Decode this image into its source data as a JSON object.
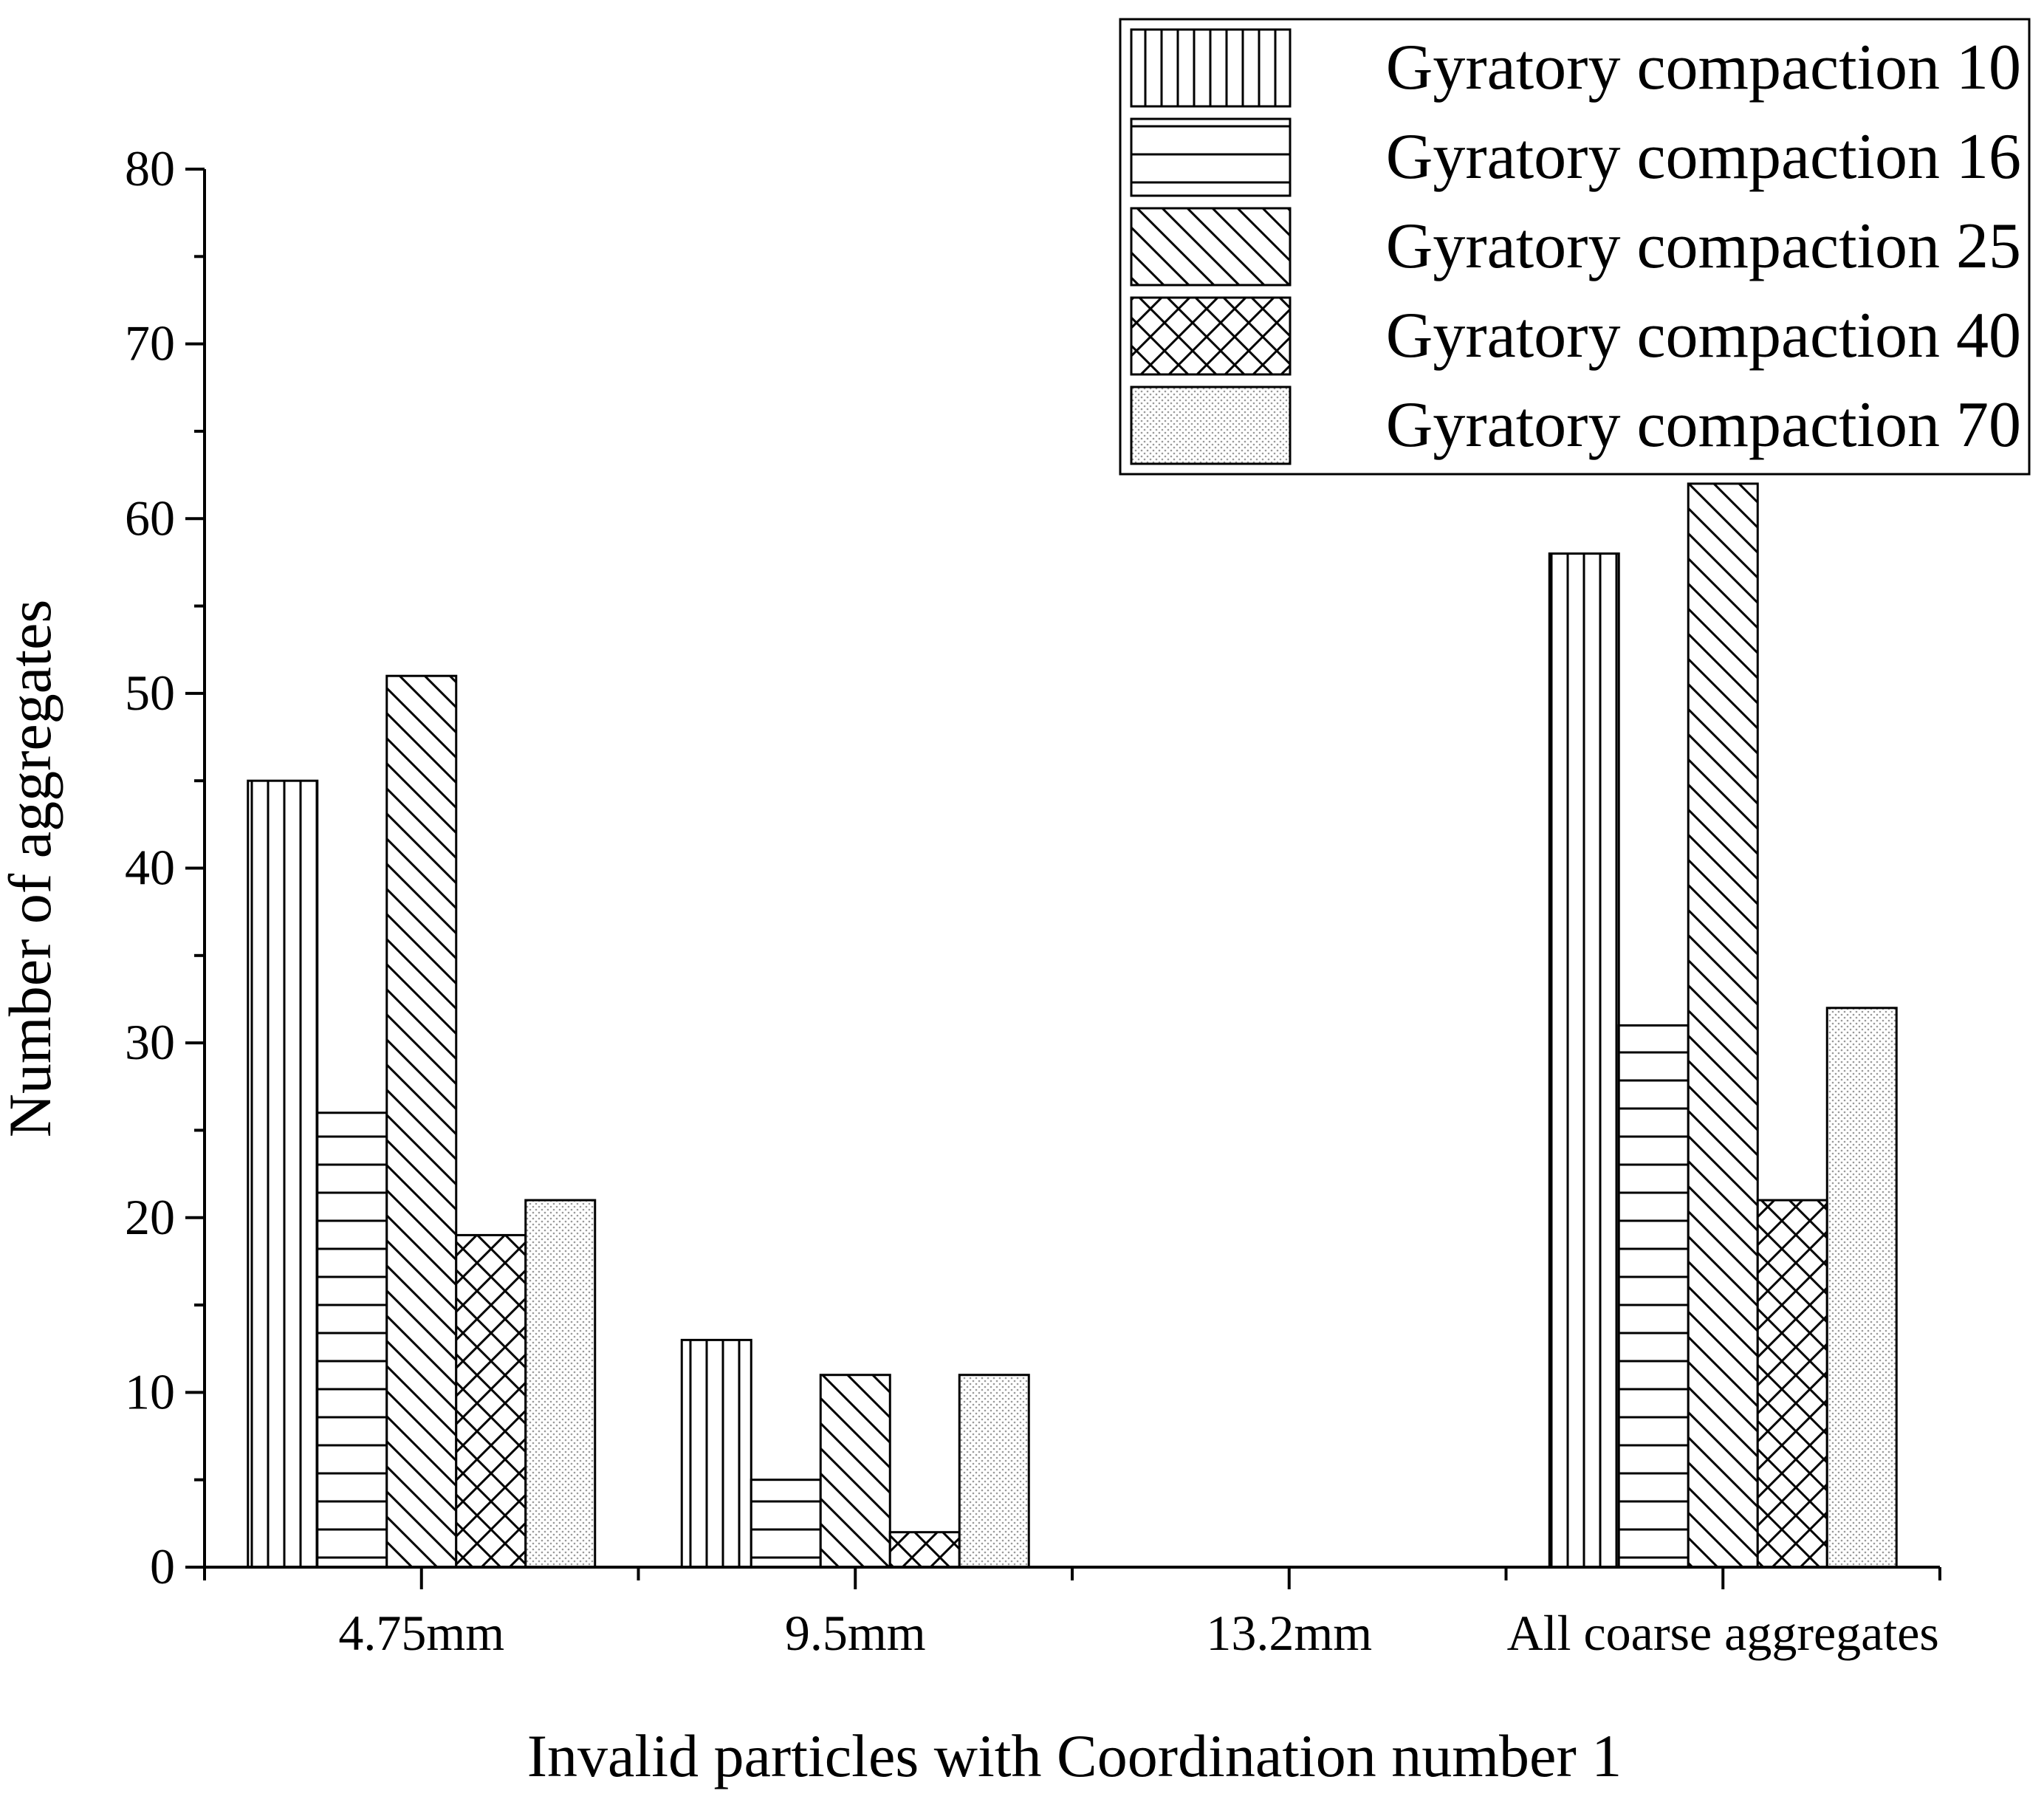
{
  "chart_data": {
    "type": "bar",
    "title": "",
    "xlabel": "Invalid particles with Coordination number 1",
    "ylabel": "Number of aggregates",
    "ylim": [
      0,
      80
    ],
    "yticks": [
      0,
      10,
      20,
      30,
      40,
      50,
      60,
      70,
      80
    ],
    "grid": false,
    "legend_position": "top-right",
    "categories": [
      "4.75mm",
      "9.5mm",
      "13.2mm",
      "All coarse aggregates"
    ],
    "series": [
      {
        "name": "Gyratory compaction 10",
        "pattern": "vertical-lines",
        "values": [
          45,
          13,
          0,
          58
        ]
      },
      {
        "name": "Gyratory compaction 16",
        "pattern": "horizontal-lines",
        "values": [
          26,
          5,
          0,
          31
        ]
      },
      {
        "name": "Gyratory compaction 25",
        "pattern": "diagonal-lines",
        "values": [
          51,
          11,
          0,
          62
        ]
      },
      {
        "name": "Gyratory compaction 40",
        "pattern": "crosshatch",
        "values": [
          19,
          2,
          0,
          21
        ]
      },
      {
        "name": "Gyratory compaction 70",
        "pattern": "dots",
        "values": [
          21,
          11,
          0,
          32
        ]
      }
    ],
    "colors": {
      "stroke": "#000000",
      "background": "#ffffff",
      "dots": "#9a9a9a"
    }
  }
}
